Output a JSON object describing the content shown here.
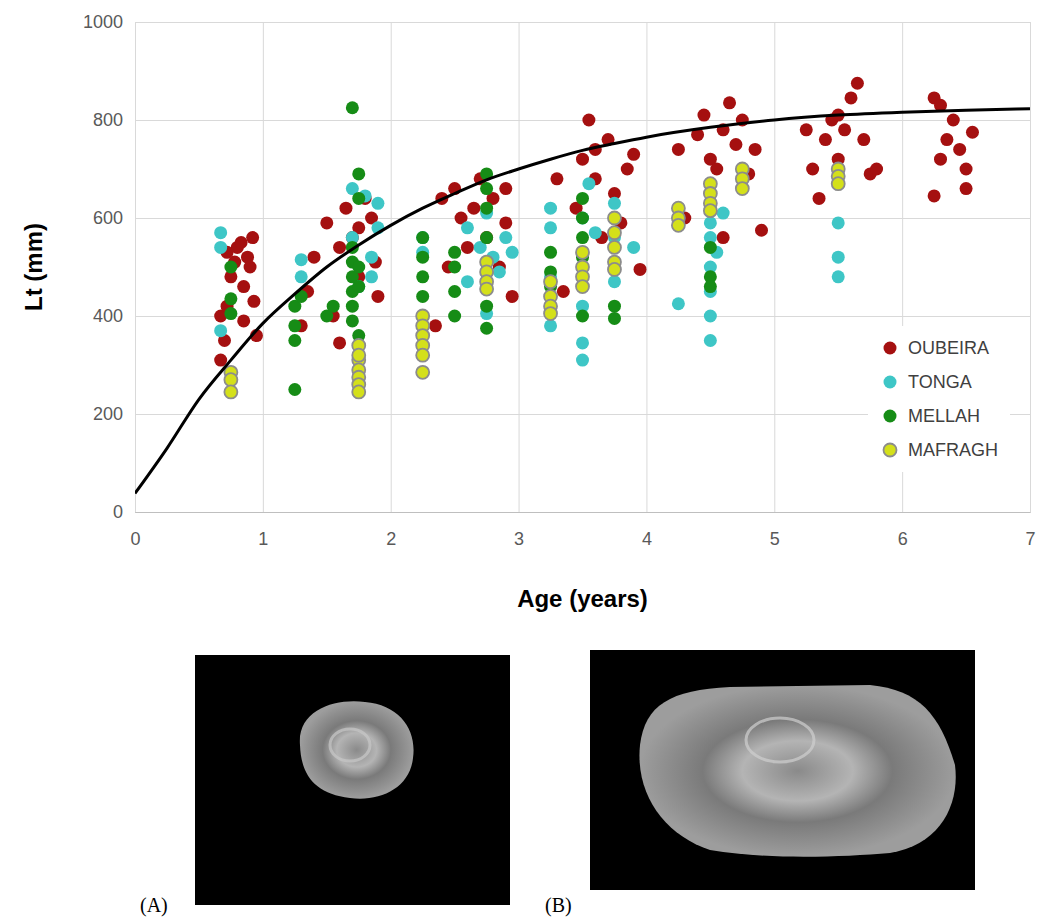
{
  "chart_data": {
    "type": "scatter",
    "x_label": "Age (years)",
    "y_label": "Lt (mm)",
    "xlim": [
      0,
      7
    ],
    "xticks": [
      0,
      1,
      2,
      3,
      4,
      5,
      6,
      7
    ],
    "ylim": [
      0,
      1000
    ],
    "yticks": [
      0,
      200,
      400,
      600,
      800,
      1000
    ],
    "grid": true,
    "legend": "lower right",
    "series": [
      {
        "name": "OUBEIRA",
        "color": "#a51010",
        "marker": "circle",
        "x": [
          0.67,
          0.67,
          0.7,
          0.72,
          0.75,
          0.78,
          0.8,
          0.83,
          0.85,
          0.88,
          0.9,
          0.92,
          0.93,
          0.95,
          0.72,
          0.85,
          1.3,
          1.35,
          1.4,
          1.5,
          1.55,
          1.6,
          1.65,
          1.7,
          1.75,
          1.8,
          1.85,
          1.9,
          1.88,
          1.6,
          1.75,
          2.35,
          2.4,
          2.45,
          2.5,
          2.55,
          2.6,
          2.65,
          2.7,
          2.75,
          2.8,
          2.85,
          2.9,
          2.95,
          2.9,
          3.3,
          3.35,
          3.45,
          3.5,
          3.55,
          3.6,
          3.65,
          3.7,
          3.75,
          3.8,
          3.85,
          3.9,
          3.95,
          3.6,
          4.25,
          4.3,
          4.4,
          4.45,
          4.5,
          4.55,
          4.6,
          4.65,
          4.7,
          4.75,
          4.8,
          4.9,
          4.6,
          4.85,
          5.25,
          5.3,
          5.35,
          5.4,
          5.45,
          5.5,
          5.55,
          5.6,
          5.65,
          5.7,
          5.75,
          5.8,
          5.5,
          6.25,
          6.25,
          6.3,
          6.35,
          6.4,
          6.45,
          6.5,
          6.5,
          6.55,
          6.3
        ],
        "values": [
          310,
          400,
          350,
          420,
          480,
          510,
          540,
          550,
          460,
          520,
          500,
          560,
          430,
          360,
          530,
          390,
          380,
          450,
          520,
          590,
          400,
          540,
          620,
          560,
          480,
          640,
          600,
          440,
          510,
          345,
          580,
          380,
          640,
          500,
          660,
          600,
          540,
          620,
          680,
          560,
          640,
          500,
          590,
          440,
          660,
          680,
          450,
          620,
          720,
          800,
          680,
          560,
          760,
          650,
          590,
          700,
          730,
          495,
          740,
          740,
          600,
          770,
          810,
          720,
          700,
          780,
          835,
          750,
          800,
          690,
          575,
          560,
          740,
          780,
          700,
          640,
          760,
          800,
          720,
          780,
          845,
          875,
          760,
          690,
          700,
          810,
          645,
          845,
          720,
          760,
          800,
          740,
          700,
          660,
          775,
          830
        ]
      },
      {
        "name": "TONGA",
        "color": "#3ec6c6",
        "marker": "circle",
        "x": [
          0.67,
          0.67,
          0.67,
          1.3,
          1.3,
          1.7,
          1.7,
          1.8,
          1.85,
          1.9,
          1.9,
          1.75,
          1.85,
          2.25,
          2.25,
          2.6,
          2.7,
          2.75,
          2.8,
          2.85,
          2.9,
          2.95,
          2.75,
          2.6,
          3.25,
          3.25,
          3.25,
          3.25,
          3.5,
          3.5,
          3.5,
          3.5,
          3.55,
          3.6,
          3.75,
          3.75,
          3.75,
          3.9,
          4.25,
          4.5,
          4.5,
          4.5,
          4.5,
          4.5,
          4.5,
          4.5,
          4.55,
          4.6,
          5.5,
          5.5,
          5.5
        ],
        "values": [
          570,
          540,
          370,
          515,
          480,
          560,
          660,
          645,
          520,
          630,
          580,
          460,
          480,
          560,
          530,
          580,
          540,
          610,
          520,
          490,
          560,
          530,
          405,
          470,
          620,
          580,
          380,
          480,
          310,
          345,
          420,
          600,
          670,
          570,
          630,
          560,
          470,
          540,
          425,
          350,
          400,
          450,
          500,
          560,
          620,
          590,
          530,
          610,
          590,
          520,
          480
        ]
      },
      {
        "name": "MELLAH",
        "color": "#168c16",
        "marker": "circle",
        "x": [
          0.75,
          0.75,
          0.75,
          1.25,
          1.25,
          1.25,
          1.25,
          1.3,
          1.5,
          1.55,
          1.7,
          1.75,
          1.75,
          1.7,
          1.7,
          1.7,
          1.7,
          1.7,
          1.75,
          1.75,
          1.75,
          1.7,
          2.25,
          2.25,
          2.25,
          2.25,
          2.25,
          2.25,
          2.5,
          2.5,
          2.5,
          2.5,
          2.75,
          2.75,
          2.75,
          2.75,
          2.75,
          2.75,
          3.25,
          3.25,
          3.25,
          3.5,
          3.5,
          3.5,
          3.5,
          3.5,
          3.5,
          3.75,
          3.75,
          4.5,
          4.5,
          4.5
        ],
        "values": [
          500,
          435,
          405,
          250,
          350,
          380,
          420,
          440,
          400,
          420,
          825,
          690,
          640,
          510,
          480,
          450,
          420,
          390,
          360,
          460,
          500,
          540,
          560,
          520,
          480,
          440,
          400,
          360,
          400,
          450,
          500,
          530,
          690,
          660,
          620,
          420,
          375,
          560,
          530,
          490,
          460,
          640,
          600,
          560,
          520,
          480,
          400,
          420,
          395,
          540,
          480,
          460
        ]
      },
      {
        "name": "MAFRAGH",
        "color": "#d4e01a",
        "marker": "circle-outlined",
        "x": [
          0.75,
          0.75,
          0.75,
          1.75,
          1.75,
          1.75,
          1.75,
          1.75,
          1.75,
          1.75,
          2.25,
          2.25,
          2.25,
          2.25,
          2.25,
          2.25,
          2.75,
          2.75,
          2.75,
          2.75,
          3.25,
          3.25,
          3.25,
          3.25,
          3.5,
          3.5,
          3.5,
          3.5,
          3.75,
          3.75,
          3.75,
          3.75,
          3.75,
          4.25,
          4.25,
          4.25,
          4.5,
          4.5,
          4.5,
          4.5,
          4.75,
          4.75,
          4.75,
          5.5,
          5.5,
          5.5
        ],
        "values": [
          285,
          270,
          245,
          340,
          310,
          290,
          275,
          260,
          245,
          320,
          400,
          380,
          360,
          340,
          320,
          285,
          510,
          490,
          470,
          455,
          470,
          440,
          420,
          405,
          530,
          500,
          480,
          460,
          600,
          570,
          540,
          510,
          495,
          620,
          600,
          585,
          670,
          650,
          630,
          615,
          700,
          680,
          660,
          700,
          685,
          670
        ]
      },
      {
        "type": "line",
        "color": "#000000",
        "line_style": "solid",
        "x": [
          0,
          0.25,
          0.5,
          0.75,
          1,
          1.25,
          1.5,
          1.75,
          2,
          2.25,
          2.5,
          2.75,
          3,
          3.25,
          3.5,
          3.75,
          4,
          4.5,
          5,
          5.5,
          6,
          6.5,
          7
        ],
        "values": [
          38,
          130,
          230,
          310,
          385,
          445,
          500,
          545,
          585,
          620,
          650,
          678,
          700,
          720,
          738,
          752,
          765,
          785,
          800,
          810,
          816,
          820,
          823
        ]
      }
    ]
  },
  "images": [
    {
      "label": "(A)"
    },
    {
      "label": "(B)"
    }
  ]
}
